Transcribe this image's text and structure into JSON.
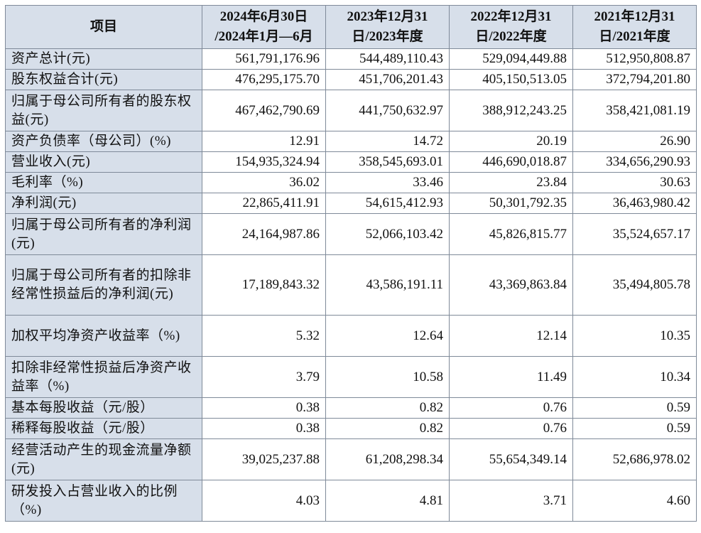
{
  "table": {
    "header": {
      "item": "项目",
      "columns": [
        {
          "line1": "2024年6月30日",
          "line2": "/2024年1月—6月"
        },
        {
          "line1": "2023年12月31",
          "line2": "日/2023年度"
        },
        {
          "line1": "2022年12月31",
          "line2": "日/2022年度"
        },
        {
          "line1": "2021年12月31",
          "line2": "日/2021年度"
        }
      ]
    },
    "rows": [
      {
        "label": "资产总计(元)",
        "values": [
          "561,791,176.96",
          "544,489,110.43",
          "529,094,449.88",
          "512,950,808.87"
        ]
      },
      {
        "label": "股东权益合计(元)",
        "values": [
          "476,295,175.70",
          "451,706,201.43",
          "405,150,513.05",
          "372,794,201.80"
        ]
      },
      {
        "label": "归属于母公司所有者的股东权益(元)",
        "values": [
          "467,462,790.69",
          "441,750,632.97",
          "388,912,243.25",
          "358,421,081.19"
        ]
      },
      {
        "label": "资产负债率（母公司）(%)",
        "values": [
          "12.91",
          "14.72",
          "20.19",
          "26.90"
        ]
      },
      {
        "label": "营业收入(元)",
        "values": [
          "154,935,324.94",
          "358,545,693.01",
          "446,690,018.87",
          "334,656,290.93"
        ]
      },
      {
        "label": "毛利率（%)",
        "values": [
          "36.02",
          "33.46",
          "23.84",
          "30.63"
        ]
      },
      {
        "label": "净利润(元)",
        "values": [
          "22,865,411.91",
          "54,615,412.93",
          "50,301,792.35",
          "36,463,980.42"
        ]
      },
      {
        "label": "归属于母公司所有者的净利润(元)",
        "values": [
          "24,164,987.86",
          "52,066,103.42",
          "45,826,815.77",
          "35,524,657.17"
        ]
      },
      {
        "label": "归属于母公司所有者的扣除非经常性损益后的净利润(元)",
        "values": [
          "17,189,843.32",
          "43,586,191.11",
          "43,369,863.84",
          "35,494,805.78"
        ]
      },
      {
        "label": "加权平均净资产收益率（%)",
        "values": [
          "5.32",
          "12.64",
          "12.14",
          "10.35"
        ]
      },
      {
        "label": "扣除非经常性损益后净资产收益率（%)",
        "values": [
          "3.79",
          "10.58",
          "11.49",
          "10.34"
        ]
      },
      {
        "label": "基本每股收益（元/股）",
        "values": [
          "0.38",
          "0.82",
          "0.76",
          "0.59"
        ]
      },
      {
        "label": "稀释每股收益（元/股）",
        "values": [
          "0.38",
          "0.82",
          "0.76",
          "0.59"
        ]
      },
      {
        "label": "经营活动产生的现金流量净额(元)",
        "values": [
          "39,025,237.88",
          "61,208,298.34",
          "55,654,349.14",
          "52,686,978.02"
        ]
      },
      {
        "label": "研发投入占营业收入的比例（%)",
        "values": [
          "4.03",
          "4.81",
          "3.71",
          "4.60"
        ]
      }
    ]
  },
  "colors": {
    "header_bg": "#d7dfea",
    "border": "#7f8a99"
  }
}
